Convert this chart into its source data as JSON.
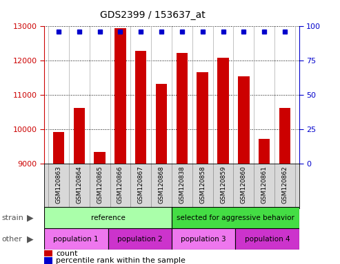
{
  "title": "GDS2399 / 153637_at",
  "samples": [
    "GSM120863",
    "GSM120864",
    "GSM120865",
    "GSM120866",
    "GSM120867",
    "GSM120868",
    "GSM120838",
    "GSM120858",
    "GSM120859",
    "GSM120860",
    "GSM120861",
    "GSM120862"
  ],
  "counts": [
    9930,
    10620,
    9340,
    12950,
    12280,
    11320,
    12230,
    11670,
    12090,
    11550,
    9730,
    10620
  ],
  "percentile_ranks": [
    96,
    96,
    96,
    96,
    96,
    96,
    96,
    96,
    96,
    96,
    96,
    96
  ],
  "ylim_left": [
    9000,
    13000
  ],
  "ylim_right": [
    0,
    100
  ],
  "yticks_left": [
    9000,
    10000,
    11000,
    12000,
    13000
  ],
  "yticks_right": [
    0,
    25,
    50,
    75,
    100
  ],
  "bar_color": "#cc0000",
  "dot_color": "#0000cc",
  "strain_groups": [
    {
      "label": "reference",
      "start": 0,
      "end": 6,
      "color": "#aaffaa"
    },
    {
      "label": "selected for aggressive behavior",
      "start": 6,
      "end": 12,
      "color": "#44dd44"
    }
  ],
  "other_groups": [
    {
      "label": "population 1",
      "start": 0,
      "end": 3,
      "color": "#ee77ee"
    },
    {
      "label": "population 2",
      "start": 3,
      "end": 6,
      "color": "#cc33cc"
    },
    {
      "label": "population 3",
      "start": 6,
      "end": 9,
      "color": "#ee77ee"
    },
    {
      "label": "population 4",
      "start": 9,
      "end": 12,
      "color": "#cc33cc"
    }
  ],
  "strain_label": "strain",
  "other_label": "other",
  "legend_count_label": "count",
  "legend_pct_label": "percentile rank within the sample",
  "right_axis_color": "#0000cc",
  "left_axis_color": "#cc0000",
  "tick_bg_color": "#d8d8d8"
}
